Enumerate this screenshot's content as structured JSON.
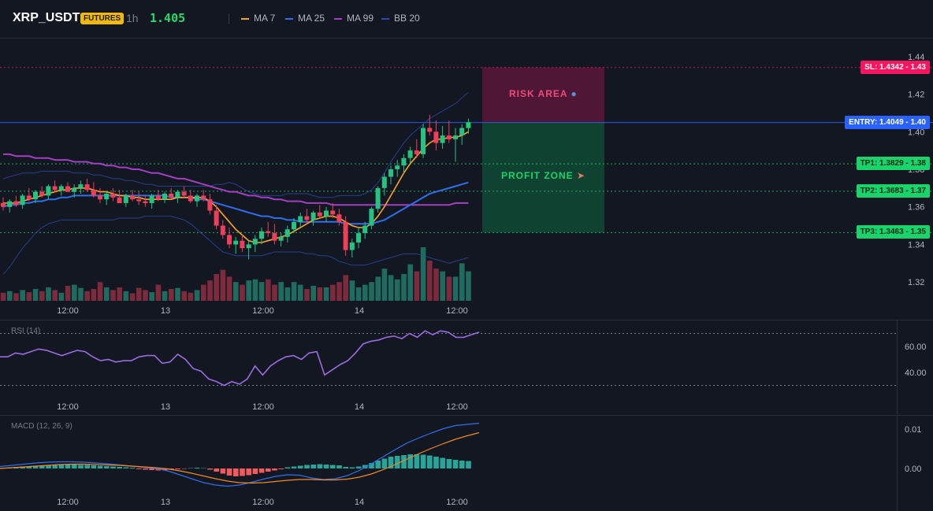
{
  "header": {
    "symbol": "XRP_USDT",
    "badge": "FUTURES",
    "timeframe": "1h",
    "price": "1.405",
    "legend": [
      {
        "label": "MA 7",
        "color": "#f7a325"
      },
      {
        "label": "MA 25",
        "color": "#2f6fec"
      },
      {
        "label": "MA 99",
        "color": "#a43fc4"
      },
      {
        "label": "BB 20",
        "color": "#2a4aa8"
      }
    ]
  },
  "zones": {
    "risk_label": "RISK AREA",
    "profit_label": "PROFIT ZONE"
  },
  "levels": [
    {
      "key": "sl",
      "tag": "SL: 1.4342 - 1.43",
      "value": 1.4342,
      "color": "#f6155e",
      "text": "#ffffff"
    },
    {
      "key": "entry",
      "tag": "ENTRY: 1.4049 - 1.40",
      "value": 1.4049,
      "color": "#2962ff",
      "text": "#ffffff"
    },
    {
      "key": "tp1",
      "tag": "TP1: 1.3829 - 1.38",
      "value": 1.3829,
      "color": "#19d46a",
      "text": "#072b16"
    },
    {
      "key": "tp2",
      "tag": "TP2: 1.3683 - 1.37",
      "value": 1.3683,
      "color": "#19d46a",
      "text": "#072b16"
    },
    {
      "key": "tp3",
      "tag": "TP3: 1.3463 - 1.35",
      "value": 1.3463,
      "color": "#19d46a",
      "text": "#072b16"
    }
  ],
  "panels": {
    "rsi_title": "RSI (14)",
    "macd_title": "MACD (12, 26, 9)"
  },
  "chart_data": [
    {
      "type": "candlestick",
      "x_tick_labels": [
        "12:00",
        "13",
        "12:00",
        "14",
        "12:00"
      ],
      "y_tick_labels": [
        "1.44",
        "1.42",
        "1.40",
        "1.38",
        "1.36",
        "1.34",
        "1.32"
      ],
      "y_ticks": [
        1.44,
        1.42,
        1.4,
        1.38,
        1.36,
        1.34,
        1.32
      ],
      "ylim": [
        1.31,
        1.45
      ],
      "colors": {
        "up": "#26a69a",
        "up_bright": "#19d46a",
        "down": "#ef3e5a"
      },
      "candles": [
        [
          1.362,
          1.365,
          1.358,
          1.36
        ],
        [
          1.36,
          1.364,
          1.357,
          1.363
        ],
        [
          1.363,
          1.366,
          1.36,
          1.361
        ],
        [
          1.361,
          1.367,
          1.359,
          1.366
        ],
        [
          1.366,
          1.37,
          1.363,
          1.364
        ],
        [
          1.364,
          1.369,
          1.362,
          1.368
        ],
        [
          1.368,
          1.371,
          1.365,
          1.366
        ],
        [
          1.366,
          1.372,
          1.364,
          1.371
        ],
        [
          1.371,
          1.374,
          1.368,
          1.369
        ],
        [
          1.369,
          1.372,
          1.366,
          1.371
        ],
        [
          1.371,
          1.373,
          1.368,
          1.368
        ],
        [
          1.368,
          1.372,
          1.365,
          1.37
        ],
        [
          1.37,
          1.374,
          1.367,
          1.372
        ],
        [
          1.372,
          1.375,
          1.368,
          1.369
        ],
        [
          1.369,
          1.373,
          1.365,
          1.366
        ],
        [
          1.366,
          1.37,
          1.362,
          1.364
        ],
        [
          1.364,
          1.368,
          1.361,
          1.367
        ],
        [
          1.367,
          1.37,
          1.363,
          1.365
        ],
        [
          1.365,
          1.369,
          1.362,
          1.362
        ],
        [
          1.362,
          1.367,
          1.36,
          1.366
        ],
        [
          1.366,
          1.369,
          1.363,
          1.364
        ],
        [
          1.364,
          1.368,
          1.361,
          1.363
        ],
        [
          1.363,
          1.366,
          1.36,
          1.362
        ],
        [
          1.362,
          1.367,
          1.359,
          1.366
        ],
        [
          1.366,
          1.369,
          1.363,
          1.364
        ],
        [
          1.364,
          1.368,
          1.362,
          1.367
        ],
        [
          1.367,
          1.37,
          1.364,
          1.365
        ],
        [
          1.365,
          1.369,
          1.362,
          1.368
        ],
        [
          1.368,
          1.371,
          1.365,
          1.366
        ],
        [
          1.366,
          1.369,
          1.362,
          1.363
        ],
        [
          1.363,
          1.367,
          1.36,
          1.366
        ],
        [
          1.366,
          1.369,
          1.363,
          1.364
        ],
        [
          1.364,
          1.367,
          1.356,
          1.358
        ],
        [
          1.358,
          1.361,
          1.348,
          1.35
        ],
        [
          1.35,
          1.353,
          1.343,
          1.345
        ],
        [
          1.345,
          1.349,
          1.338,
          1.34
        ],
        [
          1.34,
          1.344,
          1.335,
          1.342
        ],
        [
          1.342,
          1.345,
          1.336,
          1.338
        ],
        [
          1.338,
          1.342,
          1.332,
          1.34
        ],
        [
          1.34,
          1.345,
          1.336,
          1.343
        ],
        [
          1.343,
          1.349,
          1.34,
          1.347
        ],
        [
          1.347,
          1.352,
          1.344,
          1.346
        ],
        [
          1.346,
          1.351,
          1.34,
          1.342
        ],
        [
          1.342,
          1.346,
          1.339,
          1.344
        ],
        [
          1.344,
          1.35,
          1.341,
          1.348
        ],
        [
          1.348,
          1.354,
          1.346,
          1.352
        ],
        [
          1.352,
          1.357,
          1.349,
          1.355
        ],
        [
          1.355,
          1.359,
          1.351,
          1.353
        ],
        [
          1.353,
          1.358,
          1.35,
          1.357
        ],
        [
          1.357,
          1.361,
          1.354,
          1.355
        ],
        [
          1.355,
          1.36,
          1.352,
          1.358
        ],
        [
          1.358,
          1.362,
          1.354,
          1.356
        ],
        [
          1.356,
          1.359,
          1.35,
          1.352
        ],
        [
          1.352,
          1.355,
          1.334,
          1.337
        ],
        [
          1.337,
          1.343,
          1.333,
          1.341
        ],
        [
          1.341,
          1.349,
          1.338,
          1.346
        ],
        [
          1.346,
          1.352,
          1.343,
          1.35
        ],
        [
          1.35,
          1.36,
          1.348,
          1.359
        ],
        [
          1.359,
          1.371,
          1.357,
          1.37
        ],
        [
          1.37,
          1.378,
          1.366,
          1.376
        ],
        [
          1.376,
          1.382,
          1.372,
          1.38
        ],
        [
          1.38,
          1.385,
          1.376,
          1.382
        ],
        [
          1.382,
          1.388,
          1.378,
          1.386
        ],
        [
          1.386,
          1.392,
          1.383,
          1.39
        ],
        [
          1.39,
          1.396,
          1.386,
          1.388
        ],
        [
          1.388,
          1.404,
          1.386,
          1.402
        ],
        [
          1.402,
          1.409,
          1.398,
          1.4
        ],
        [
          1.4,
          1.406,
          1.39,
          1.394
        ],
        [
          1.394,
          1.403,
          1.391,
          1.398
        ],
        [
          1.398,
          1.406,
          1.394,
          1.396
        ],
        [
          1.396,
          1.402,
          1.384,
          1.398
        ],
        [
          1.398,
          1.404,
          1.393,
          1.402
        ],
        [
          1.402,
          1.407,
          1.399,
          1.405
        ]
      ],
      "ma7": [
        1.362,
        1.362,
        1.362,
        1.363,
        1.364,
        1.365,
        1.366,
        1.367,
        1.368,
        1.369,
        1.369,
        1.37,
        1.37,
        1.37,
        1.369,
        1.368,
        1.368,
        1.367,
        1.366,
        1.366,
        1.365,
        1.365,
        1.364,
        1.364,
        1.364,
        1.364,
        1.364,
        1.365,
        1.365,
        1.365,
        1.365,
        1.365,
        1.363,
        1.36,
        1.356,
        1.352,
        1.348,
        1.345,
        1.342,
        1.341,
        1.341,
        1.342,
        1.343,
        1.344,
        1.345,
        1.347,
        1.349,
        1.351,
        1.353,
        1.354,
        1.355,
        1.355,
        1.354,
        1.352,
        1.35,
        1.349,
        1.349,
        1.351,
        1.355,
        1.36,
        1.366,
        1.372,
        1.378,
        1.383,
        1.387,
        1.391,
        1.394,
        1.396,
        1.396,
        1.397,
        1.397,
        1.398,
        1.4
      ],
      "ma25": [
        1.36,
        1.361,
        1.361,
        1.362,
        1.362,
        1.363,
        1.363,
        1.364,
        1.364,
        1.365,
        1.365,
        1.366,
        1.366,
        1.366,
        1.366,
        1.366,
        1.366,
        1.366,
        1.366,
        1.366,
        1.366,
        1.366,
        1.366,
        1.366,
        1.366,
        1.366,
        1.365,
        1.365,
        1.365,
        1.365,
        1.364,
        1.364,
        1.363,
        1.362,
        1.361,
        1.36,
        1.359,
        1.358,
        1.357,
        1.356,
        1.355,
        1.355,
        1.354,
        1.354,
        1.353,
        1.353,
        1.352,
        1.352,
        1.352,
        1.352,
        1.352,
        1.352,
        1.352,
        1.351,
        1.351,
        1.351,
        1.351,
        1.351,
        1.352,
        1.353,
        1.355,
        1.357,
        1.359,
        1.361,
        1.363,
        1.365,
        1.367,
        1.368,
        1.369,
        1.37,
        1.371,
        1.372,
        1.373
      ],
      "ma99": [
        1.388,
        1.388,
        1.387,
        1.387,
        1.387,
        1.386,
        1.386,
        1.386,
        1.385,
        1.385,
        1.385,
        1.384,
        1.384,
        1.384,
        1.383,
        1.383,
        1.382,
        1.382,
        1.381,
        1.381,
        1.38,
        1.38,
        1.379,
        1.378,
        1.378,
        1.377,
        1.376,
        1.375,
        1.375,
        1.374,
        1.373,
        1.372,
        1.371,
        1.37,
        1.369,
        1.368,
        1.368,
        1.367,
        1.366,
        1.366,
        1.365,
        1.365,
        1.364,
        1.364,
        1.363,
        1.363,
        1.363,
        1.362,
        1.362,
        1.362,
        1.362,
        1.361,
        1.361,
        1.361,
        1.361,
        1.361,
        1.361,
        1.361,
        1.361,
        1.361,
        1.361,
        1.361,
        1.361,
        1.361,
        1.361,
        1.361,
        1.361,
        1.361,
        1.361,
        1.361,
        1.362,
        1.362,
        1.362
      ],
      "bb_upper": [
        1.375,
        1.376,
        1.377,
        1.378,
        1.378,
        1.378,
        1.379,
        1.379,
        1.379,
        1.379,
        1.379,
        1.378,
        1.378,
        1.378,
        1.377,
        1.377,
        1.376,
        1.375,
        1.375,
        1.374,
        1.374,
        1.373,
        1.372,
        1.372,
        1.371,
        1.371,
        1.371,
        1.371,
        1.371,
        1.371,
        1.371,
        1.371,
        1.371,
        1.372,
        1.372,
        1.373,
        1.372,
        1.37,
        1.368,
        1.367,
        1.366,
        1.366,
        1.366,
        1.366,
        1.367,
        1.367,
        1.367,
        1.367,
        1.366,
        1.365,
        1.365,
        1.365,
        1.366,
        1.366,
        1.366,
        1.366,
        1.367,
        1.369,
        1.373,
        1.378,
        1.384,
        1.389,
        1.394,
        1.398,
        1.401,
        1.404,
        1.407,
        1.409,
        1.411,
        1.413,
        1.415,
        1.418,
        1.421
      ],
      "bb_lower": [
        1.324,
        1.328,
        1.333,
        1.338,
        1.342,
        1.346,
        1.349,
        1.351,
        1.352,
        1.353,
        1.353,
        1.353,
        1.353,
        1.353,
        1.353,
        1.353,
        1.353,
        1.353,
        1.354,
        1.354,
        1.354,
        1.354,
        1.355,
        1.355,
        1.355,
        1.355,
        1.355,
        1.354,
        1.353,
        1.351,
        1.348,
        1.345,
        1.342,
        1.339,
        1.336,
        1.335,
        1.334,
        1.334,
        1.334,
        1.334,
        1.334,
        1.335,
        1.336,
        1.336,
        1.336,
        1.336,
        1.336,
        1.335,
        1.335,
        1.334,
        1.334,
        1.333,
        1.331,
        1.33,
        1.329,
        1.329,
        1.329,
        1.33,
        1.331,
        1.332,
        1.333,
        1.334,
        1.335,
        1.335,
        1.335,
        1.334,
        1.333,
        1.332,
        1.331,
        1.33,
        1.331,
        1.332,
        1.333
      ],
      "volume": [
        0.15,
        0.18,
        0.14,
        0.2,
        0.16,
        0.22,
        0.18,
        0.25,
        0.2,
        0.15,
        0.28,
        0.3,
        0.24,
        0.18,
        0.22,
        0.35,
        0.25,
        0.2,
        0.25,
        0.18,
        0.14,
        0.24,
        0.2,
        0.16,
        0.3,
        0.18,
        0.22,
        0.24,
        0.18,
        0.15,
        0.2,
        0.3,
        0.38,
        0.5,
        0.58,
        0.45,
        0.35,
        0.3,
        0.38,
        0.4,
        0.35,
        0.4,
        0.3,
        0.35,
        0.25,
        0.35,
        0.3,
        0.22,
        0.28,
        0.25,
        0.25,
        0.3,
        0.35,
        0.48,
        0.38,
        0.25,
        0.3,
        0.35,
        0.45,
        0.6,
        0.48,
        0.4,
        0.5,
        0.68,
        0.55,
        1.0,
        0.75,
        0.6,
        0.55,
        0.45,
        0.45,
        0.7,
        0.55
      ]
    },
    {
      "type": "line",
      "title": "RSI (14)",
      "y_tick_labels": [
        "60.00",
        "40.00"
      ],
      "y_ticks": [
        60,
        40
      ],
      "ylim": [
        20,
        80
      ],
      "bands": [
        70,
        30
      ],
      "x_tick_labels": [
        "12:00",
        "13",
        "12:00",
        "14",
        "12:00"
      ],
      "series": [
        {
          "color": "#9a6ce0",
          "values": [
            52,
            52,
            55,
            54,
            56,
            58,
            57,
            55,
            53,
            55,
            57,
            56,
            52,
            49,
            50,
            48,
            49,
            49,
            52,
            53,
            53,
            47,
            48,
            54,
            50,
            43,
            41,
            35,
            33,
            30,
            33,
            31,
            35,
            45,
            38,
            45,
            49,
            52,
            53,
            50,
            55,
            56,
            38,
            42,
            46,
            49,
            55,
            62,
            64,
            65,
            67,
            68,
            66,
            70,
            67,
            72,
            69,
            72,
            71,
            67,
            67,
            69,
            71
          ]
        }
      ]
    },
    {
      "type": "bar",
      "title": "MACD (12, 26, 9)",
      "y_tick_labels": [
        "0.01",
        "0.00"
      ],
      "y_ticks": [
        0.01,
        0.0
      ],
      "ylim": [
        -0.006,
        0.013
      ],
      "x_tick_labels": [
        "12:00",
        "13",
        "12:00",
        "14",
        "12:00"
      ],
      "histogram": [
        0.0002,
        0.0003,
        0.0004,
        0.0005,
        0.0006,
        0.0007,
        0.0008,
        0.0008,
        0.0009,
        0.0009,
        0.001,
        0.001,
        0.0009,
        0.0009,
        0.0008,
        0.0007,
        0.0006,
        0.0005,
        0.0004,
        0.0003,
        0.0002,
        -0.0002,
        -0.0003,
        -0.0004,
        -0.0005,
        -0.0004,
        -0.0003,
        -0.0002,
        -0.0001,
        0.0001,
        0.0002,
        0.0001,
        -0.0003,
        -0.0008,
        -0.0013,
        -0.0018,
        -0.002,
        -0.0019,
        -0.0017,
        -0.0014,
        -0.0011,
        -0.0008,
        -0.0005,
        -0.0002,
        0.0003,
        0.0005,
        0.0007,
        0.0009,
        0.001,
        0.0011,
        0.001,
        0.0009,
        0.0008,
        0.0004,
        0.0003,
        0.0005,
        0.0009,
        0.0014,
        0.002,
        0.0025,
        0.003,
        0.0032,
        0.0034,
        0.0036,
        0.0036,
        0.0035,
        0.0033,
        0.003,
        0.0027,
        0.0024,
        0.0022,
        0.002,
        0.0019
      ],
      "series": [
        {
          "color": "#2f6fec",
          "values": [
            0.0005,
            0.0008,
            0.0011,
            0.0014,
            0.0016,
            0.0017,
            0.0017,
            0.0016,
            0.0014,
            0.0012,
            0.0009,
            0.0006,
            0.0003,
            0.0,
            -0.0006,
            -0.0016,
            -0.0026,
            -0.0036,
            -0.0042,
            -0.0045,
            -0.0042,
            -0.0035,
            -0.0027,
            -0.002,
            -0.0016,
            -0.0017,
            -0.0024,
            -0.0028,
            -0.0026,
            -0.0018,
            -0.0005,
            0.0012,
            0.003,
            0.0048,
            0.0065,
            0.0078,
            0.009,
            0.0101,
            0.0109,
            0.0112,
            0.0115
          ]
        },
        {
          "color": "#f08a24",
          "values": [
            0.0,
            0.0002,
            0.0004,
            0.0006,
            0.0008,
            0.001,
            0.0011,
            0.0011,
            0.001,
            0.0009,
            0.0008,
            0.0006,
            0.0004,
            0.0002,
            -0.0001,
            -0.0006,
            -0.0012,
            -0.0019,
            -0.0026,
            -0.0032,
            -0.0036,
            -0.0037,
            -0.0036,
            -0.0033,
            -0.003,
            -0.0028,
            -0.0028,
            -0.0029,
            -0.0029,
            -0.0027,
            -0.0022,
            -0.0014,
            -0.0003,
            0.001,
            0.0024,
            0.0038,
            0.0051,
            0.0063,
            0.0074,
            0.0083,
            0.0091
          ]
        }
      ]
    }
  ]
}
